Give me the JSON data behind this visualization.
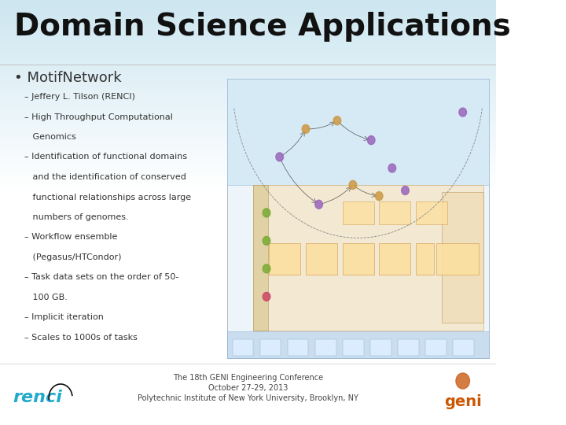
{
  "title": "Domain Science Applications",
  "bullet_main": "• MotifNetwork",
  "bullet_items": [
    "– Jeffery L. Tilson (RENCI)",
    "– High Throughput Computational",
    "   Genomics",
    "– Identification of functional domains",
    "   and the identification of conserved",
    "   functional relationships across large",
    "   numbers of genomes.",
    "– Workflow ensemble",
    "   (Pegasus/HTCondor)",
    "– Task data sets on the order of 50-",
    "   100 GB.",
    "– Implicit iteration",
    "– Scales to 1000s of tasks"
  ],
  "footer_line1": "The 18th GENI Engineering Conference",
  "footer_line2": "October 27-29, 2013",
  "footer_line3": "Polytechnic Institute of New York University, Brooklyn, NY",
  "title_color": "#111111",
  "text_color": "#333333",
  "footer_color": "#444444",
  "bg_top": "#cde4ef",
  "bg_mid": "#e8f4f9",
  "bg_bottom": "#ffffff"
}
